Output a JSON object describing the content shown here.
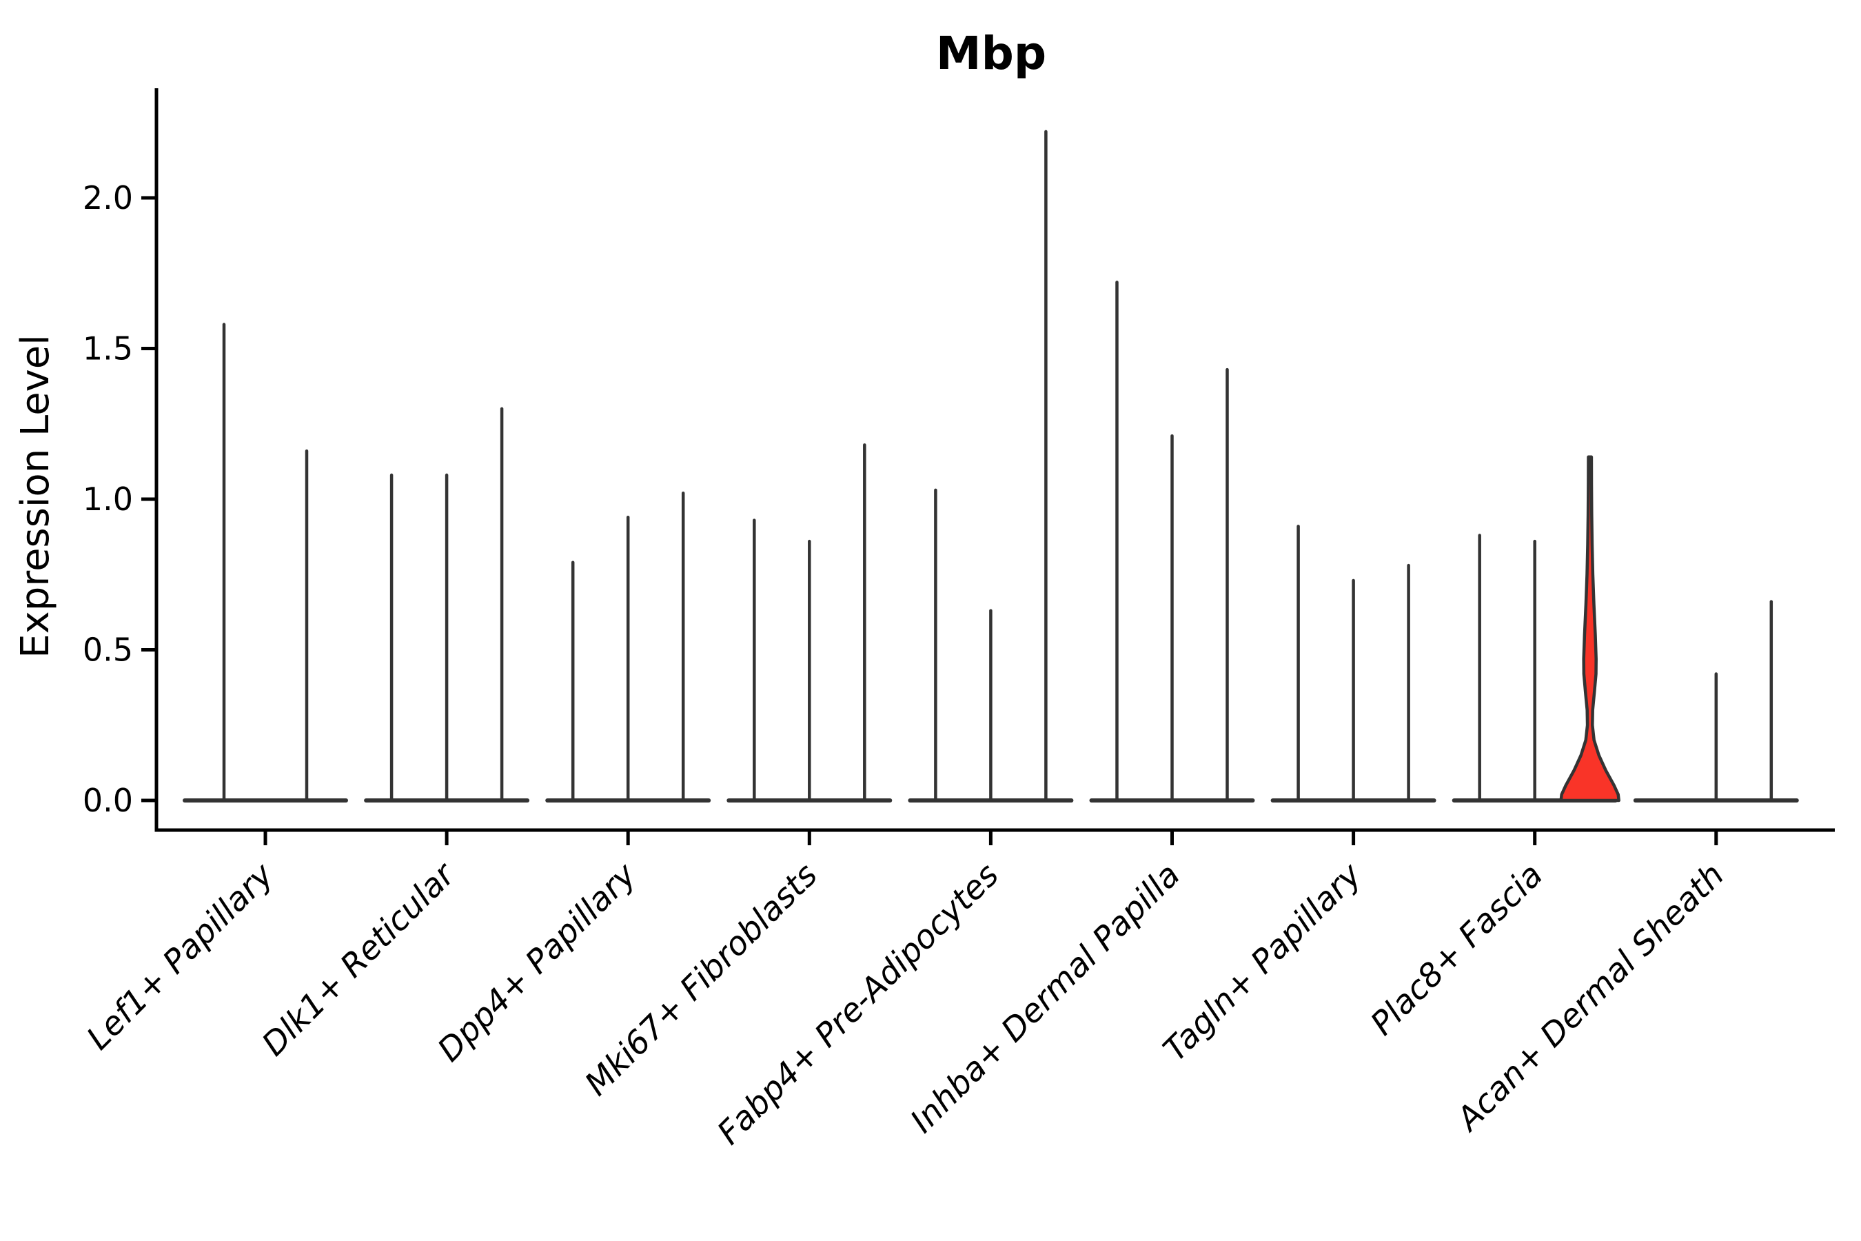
{
  "title": "Mbp",
  "colors": {
    "violin_stroke": "#333333",
    "highlight_fill": "#F93428",
    "axis": "#000000",
    "text": "#000000",
    "background": "#ffffff"
  },
  "chart_data": {
    "type": "violin",
    "title": "Mbp",
    "xlabel": "",
    "ylabel": "Expression Level",
    "legend": "none",
    "grid": false,
    "ylim": [
      -0.08,
      2.36
    ],
    "ytick_values": [
      0.0,
      0.5,
      1.0,
      1.5,
      2.0
    ],
    "ytick_labels": [
      "0.0",
      "0.5",
      "1.0",
      "1.5",
      "2.0"
    ],
    "categories": [
      "Lef1+ Papillary",
      "Dlk1+ Reticular",
      "Dpp4+ Papillary",
      "Mki67+ Fibroblasts",
      "Fabp4+ Pre-Adipocytes",
      "Inhba+ Dermal Papilla",
      "Tagln+ Papillary",
      "Plac8+ Fascia",
      "Acan+ Dermal Sheath"
    ],
    "groups": [
      {
        "label": "Lef1+ Papillary",
        "violins": [
          {
            "slot": -1.5,
            "peak": 1.58
          },
          {
            "slot": 1.5,
            "peak": 1.16
          }
        ]
      },
      {
        "label": "Dlk1+ Reticular",
        "violins": [
          {
            "slot": -2,
            "peak": 1.08
          },
          {
            "slot": 0,
            "peak": 1.08
          },
          {
            "slot": 2,
            "peak": 1.3
          }
        ]
      },
      {
        "label": "Dpp4+ Papillary",
        "violins": [
          {
            "slot": -2,
            "peak": 0.79
          },
          {
            "slot": 0,
            "peak": 0.94
          },
          {
            "slot": 2,
            "peak": 1.02
          }
        ]
      },
      {
        "label": "Mki67+ Fibroblasts",
        "violins": [
          {
            "slot": -2,
            "peak": 0.93
          },
          {
            "slot": 0,
            "peak": 0.86
          },
          {
            "slot": 2,
            "peak": 1.18
          }
        ]
      },
      {
        "label": "Fabp4+ Pre-Adipocytes",
        "violins": [
          {
            "slot": -2,
            "peak": 1.03
          },
          {
            "slot": 0,
            "peak": 0.63
          },
          {
            "slot": 2,
            "peak": 2.22
          }
        ]
      },
      {
        "label": "Inhba+ Dermal Papilla",
        "violins": [
          {
            "slot": -2,
            "peak": 1.72
          },
          {
            "slot": 0,
            "peak": 1.21
          },
          {
            "slot": 2,
            "peak": 1.43
          }
        ]
      },
      {
        "label": "Tagln+ Papillary",
        "violins": [
          {
            "slot": -2,
            "peak": 0.91
          },
          {
            "slot": 0,
            "peak": 0.73
          },
          {
            "slot": 2,
            "peak": 0.78
          }
        ]
      },
      {
        "label": "Plac8+ Fascia",
        "violins": [
          {
            "slot": -2,
            "peak": 0.88
          },
          {
            "slot": 0,
            "peak": 0.86
          },
          {
            "slot": 2,
            "peak": 1.14,
            "highlight": true
          }
        ]
      },
      {
        "label": "Acan+ Dermal Sheath",
        "violins": [
          {
            "slot": -2,
            "peak": 0.0
          },
          {
            "slot": 0,
            "peak": 0.42
          },
          {
            "slot": 2,
            "peak": 0.66
          }
        ]
      }
    ],
    "highlight_profile": [
      [
        1.14,
        2.2
      ],
      [
        1.05,
        2.3
      ],
      [
        0.95,
        2.6
      ],
      [
        0.85,
        3.2
      ],
      [
        0.75,
        4.2
      ],
      [
        0.65,
        5.8
      ],
      [
        0.55,
        7.8
      ],
      [
        0.47,
        9.0
      ],
      [
        0.42,
        8.8
      ],
      [
        0.36,
        6.5
      ],
      [
        0.3,
        4.0
      ],
      [
        0.25,
        3.6
      ],
      [
        0.2,
        6.0
      ],
      [
        0.15,
        13.0
      ],
      [
        0.1,
        23.0
      ],
      [
        0.05,
        35.0
      ],
      [
        0.02,
        41.0
      ],
      [
        0.0,
        42.0
      ]
    ]
  }
}
